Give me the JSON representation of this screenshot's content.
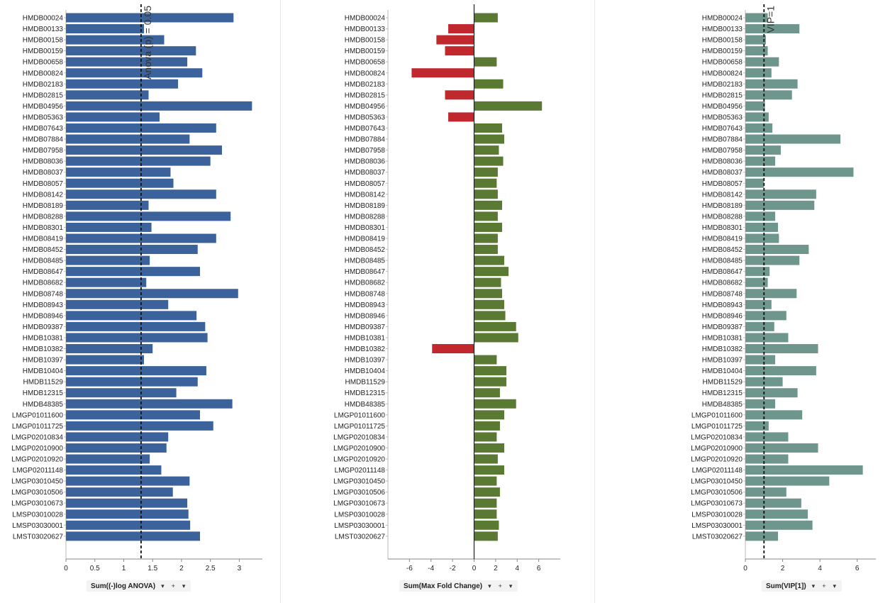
{
  "panels": [
    {
      "id": "anova",
      "color": "#3b629a",
      "xlim": [
        0,
        3.4
      ],
      "ticks": [
        0,
        0.5,
        1,
        1.5,
        2,
        2.5,
        3
      ],
      "ref_value": 1.3,
      "ref_label": "Anova (p) = 0.05",
      "axis_title": "Sum((-)log ANOVA)"
    },
    {
      "id": "foldchange",
      "pos_color": "#5a7a34",
      "neg_color": "#c0282e",
      "xlim": [
        -8,
        8
      ],
      "ticks": [
        -6,
        -4,
        -2,
        0,
        2,
        4,
        6
      ],
      "axis_title": "Sum(Max Fold Change)"
    },
    {
      "id": "vip",
      "color": "#6f968c",
      "xlim": [
        0,
        7
      ],
      "ticks": [
        0,
        2,
        4,
        6
      ],
      "ref_value": 1,
      "ref_label": "VIP=1",
      "axis_title": "Sum(VIP[1])"
    }
  ],
  "controls": {
    "dropdown": "▾",
    "plus": "+"
  },
  "chart_data": [
    {
      "type": "bar",
      "orientation": "horizontal",
      "xlabel": "Sum((-)log ANOVA)",
      "xlim": [
        0,
        3.4
      ],
      "reference_line": {
        "value": 1.3,
        "label": "Anova (p) = 0.05"
      },
      "categories": [
        "HMDB00024",
        "HMDB00133",
        "HMDB00158",
        "HMDB00159",
        "HMDB00658",
        "HMDB00824",
        "HMDB02183",
        "HMDB02815",
        "HMDB04956",
        "HMDB05363",
        "HMDB07643",
        "HMDB07884",
        "HMDB07958",
        "HMDB08036",
        "HMDB08037",
        "HMDB08057",
        "HMDB08142",
        "HMDB08189",
        "HMDB08288",
        "HMDB08301",
        "HMDB08419",
        "HMDB08452",
        "HMDB08485",
        "HMDB08647",
        "HMDB08682",
        "HMDB08748",
        "HMDB08943",
        "HMDB08946",
        "HMDB09387",
        "HMDB10381",
        "HMDB10382",
        "HMDB10397",
        "HMDB10404",
        "HMDB11529",
        "HMDB12315",
        "HMDB48385",
        "LMGP01011600",
        "LMGP01011725",
        "LMGP02010834",
        "LMGP02010900",
        "LMGP02010920",
        "LMGP02011148",
        "LMGP03010450",
        "LMGP03010506",
        "LMGP03010673",
        "LMSP03010028",
        "LMSP03030001",
        "LMST03020627"
      ],
      "values": [
        2.9,
        1.35,
        1.7,
        2.25,
        2.1,
        2.36,
        1.94,
        1.43,
        3.22,
        1.62,
        2.6,
        2.14,
        2.7,
        2.5,
        1.81,
        1.86,
        2.6,
        1.43,
        2.85,
        1.48,
        2.6,
        2.28,
        1.45,
        2.32,
        1.39,
        2.98,
        1.77,
        2.26,
        2.41,
        2.45,
        1.5,
        1.35,
        2.43,
        2.28,
        1.91,
        2.88,
        2.32,
        2.55,
        1.77,
        1.74,
        1.45,
        1.65,
        2.14,
        1.85,
        2.1,
        2.12,
        2.15,
        2.32
      ]
    },
    {
      "type": "bar",
      "orientation": "horizontal",
      "xlabel": "Sum(Max Fold Change)",
      "xlim": [
        -8,
        8
      ],
      "categories": [
        "HMDB00024",
        "HMDB00133",
        "HMDB00158",
        "HMDB00159",
        "HMDB00658",
        "HMDB00824",
        "HMDB02183",
        "HMDB02815",
        "HMDB04956",
        "HMDB05363",
        "HMDB07643",
        "HMDB07884",
        "HMDB07958",
        "HMDB08036",
        "HMDB08037",
        "HMDB08057",
        "HMDB08142",
        "HMDB08189",
        "HMDB08288",
        "HMDB08301",
        "HMDB08419",
        "HMDB08452",
        "HMDB08485",
        "HMDB08647",
        "HMDB08682",
        "HMDB08748",
        "HMDB08943",
        "HMDB08946",
        "HMDB09387",
        "HMDB10381",
        "HMDB10382",
        "HMDB10397",
        "HMDB10404",
        "HMDB11529",
        "HMDB12315",
        "HMDB48385",
        "LMGP01011600",
        "LMGP01011725",
        "LMGP02010834",
        "LMGP02010900",
        "LMGP02010920",
        "LMGP02011148",
        "LMGP03010450",
        "LMGP03010506",
        "LMGP03010673",
        "LMSP03010028",
        "LMSP03030001",
        "LMST03020627"
      ],
      "values": [
        2.2,
        -2.4,
        -3.5,
        -2.7,
        2.1,
        -5.8,
        2.7,
        -2.7,
        6.3,
        -2.4,
        2.6,
        2.8,
        2.3,
        2.7,
        2.2,
        2.1,
        2.2,
        2.6,
        2.2,
        2.6,
        2.2,
        2.2,
        2.8,
        3.2,
        2.5,
        2.6,
        2.8,
        2.9,
        3.9,
        4.1,
        -3.9,
        2.1,
        3.0,
        3.0,
        2.4,
        3.9,
        2.8,
        2.4,
        2.1,
        2.8,
        2.2,
        2.8,
        2.1,
        2.4,
        2.1,
        2.1,
        2.3,
        2.2
      ]
    },
    {
      "type": "bar",
      "orientation": "horizontal",
      "xlabel": "Sum(VIP[1])",
      "xlim": [
        0,
        7
      ],
      "reference_line": {
        "value": 1,
        "label": "VIP=1"
      },
      "categories": [
        "HMDB00024",
        "HMDB00133",
        "HMDB00158",
        "HMDB00159",
        "HMDB00658",
        "HMDB00824",
        "HMDB02183",
        "HMDB02815",
        "HMDB04956",
        "HMDB05363",
        "HMDB07643",
        "HMDB07884",
        "HMDB07958",
        "HMDB08036",
        "HMDB08037",
        "HMDB08057",
        "HMDB08142",
        "HMDB08189",
        "HMDB08288",
        "HMDB08301",
        "HMDB08419",
        "HMDB08452",
        "HMDB08485",
        "HMDB08647",
        "HMDB08682",
        "HMDB08748",
        "HMDB08943",
        "HMDB08946",
        "HMDB09387",
        "HMDB10381",
        "HMDB10382",
        "HMDB10397",
        "HMDB10404",
        "HMDB11529",
        "HMDB12315",
        "HMDB48385",
        "LMGP01011600",
        "LMGP01011725",
        "LMGP02010834",
        "LMGP02010900",
        "LMGP02010920",
        "LMGP02011148",
        "LMGP03010450",
        "LMGP03010506",
        "LMGP03010673",
        "LMSP03010028",
        "LMSP03030001",
        "LMST03020627"
      ],
      "values": [
        1.2,
        2.9,
        1.1,
        1.2,
        1.8,
        1.4,
        2.8,
        2.5,
        1.05,
        1.25,
        1.45,
        5.1,
        1.9,
        1.6,
        5.8,
        1.0,
        3.8,
        3.7,
        1.6,
        1.75,
        1.8,
        3.4,
        2.9,
        1.3,
        1.2,
        2.75,
        1.4,
        2.2,
        1.55,
        2.3,
        3.9,
        1.6,
        3.8,
        2.0,
        2.8,
        1.6,
        3.05,
        1.25,
        2.3,
        3.9,
        2.3,
        6.3,
        4.5,
        2.2,
        3.0,
        3.35,
        3.6,
        1.75
      ]
    }
  ]
}
